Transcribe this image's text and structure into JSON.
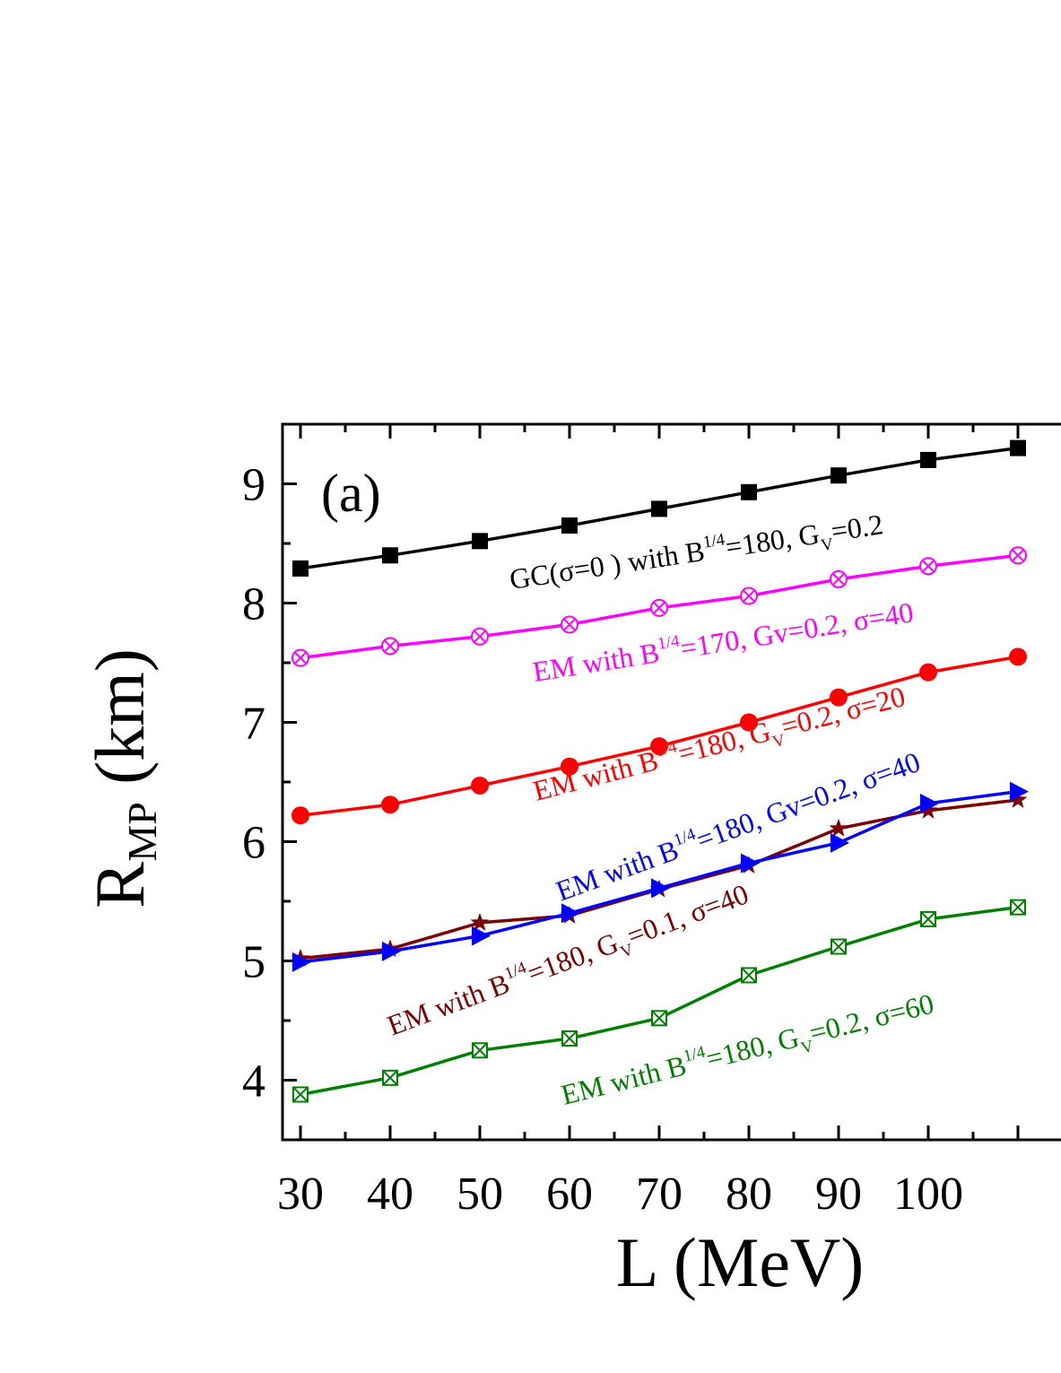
{
  "chart_data": {
    "type": "line",
    "panel_label": "(a)",
    "xlabel": "L (MeV)",
    "ylabel": {
      "main": "R",
      "sub": "MP",
      "rest": " (km)"
    },
    "xlim": [
      28,
      118
    ],
    "ylim": [
      3.5,
      9.5
    ],
    "x_ticks": [
      30,
      40,
      50,
      60,
      70,
      80,
      90,
      100
    ],
    "x_tick_labels": [
      "30",
      "40",
      "50",
      "60",
      "70",
      "80",
      "90",
      "100"
    ],
    "y_ticks": [
      4,
      5,
      6,
      7,
      8,
      9
    ],
    "y_tick_labels": [
      "4",
      "5",
      "6",
      "7",
      "8",
      "9"
    ],
    "x": [
      30,
      40,
      50,
      60,
      70,
      80,
      90,
      100,
      110
    ],
    "series": [
      {
        "key": "gc",
        "color": "#000000",
        "marker": "square",
        "values": [
          8.29,
          8.4,
          8.52,
          8.65,
          8.79,
          8.93,
          9.07,
          9.2,
          9.3
        ],
        "label": {
          "a": "GC(σ=0 ) with B",
          "sup": "1/4",
          "b": "=180, G",
          "sub": "V",
          "c": "=0.2"
        }
      },
      {
        "key": "em170",
        "color": "#ff00ff",
        "marker": "circle-x",
        "values": [
          7.54,
          7.64,
          7.72,
          7.82,
          7.96,
          8.06,
          8.2,
          8.31,
          8.4
        ],
        "label": {
          "a": "EM with B",
          "sup": "1/4",
          "b": "=170, Gv=0.2, σ=40",
          "sub": "",
          "c": ""
        }
      },
      {
        "key": "em180s20",
        "color": "#ff0000",
        "marker": "circle",
        "values": [
          6.22,
          6.31,
          6.47,
          6.63,
          6.8,
          7.0,
          7.21,
          7.42,
          7.55
        ],
        "label": {
          "a": "EM with B",
          "sup": "1/4",
          "b": "=180, G",
          "sub": "V",
          "c": "=0.2, σ=20"
        }
      },
      {
        "key": "em180gv01",
        "color": "#7b0000",
        "marker": "star",
        "values": [
          5.02,
          5.1,
          5.32,
          5.38,
          5.6,
          5.8,
          6.11,
          6.26,
          6.35
        ],
        "label": {
          "a": "EM with B",
          "sup": "1/4",
          "b": "=180, G",
          "sub": "V",
          "c": "=0.1, σ=40"
        }
      },
      {
        "key": "em180s40",
        "color": "#0000ff",
        "marker": "triangle-right",
        "values": [
          4.99,
          5.08,
          5.21,
          5.4,
          5.61,
          5.82,
          5.99,
          6.32,
          6.42
        ],
        "label": {
          "a": "EM with B",
          "sup": "1/4",
          "b": "=180, Gv=0.2, σ=40",
          "sub": "",
          "c": ""
        }
      },
      {
        "key": "em180s60",
        "color": "#008000",
        "marker": "square-x",
        "values": [
          3.88,
          4.02,
          4.25,
          4.35,
          4.52,
          4.88,
          5.12,
          5.35,
          5.45
        ],
        "label": {
          "a": "EM with B",
          "sup": "1/4",
          "b": "=180, G",
          "sub": "V",
          "c": "=0.2, σ=60"
        }
      }
    ]
  }
}
